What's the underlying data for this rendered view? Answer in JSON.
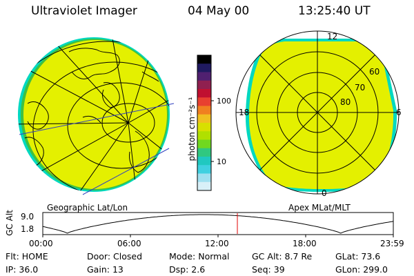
{
  "header": {
    "title": "Ultraviolet Imager",
    "date": "04 May 00",
    "time": "13:25:40 UT"
  },
  "colors": {
    "fill_yellow": "#e4f000",
    "edge_cyan": "#00d8c0",
    "edge_green": "#40c040",
    "cursor_red": "#e00000",
    "orbit_blue": "#3040c0"
  },
  "left_panel": {
    "caption": "Geographic Lat/Lon"
  },
  "right_panel": {
    "caption": "Apex MLat/MLT",
    "mlt_labels": {
      "top": "12",
      "left": "18",
      "right": "6",
      "bottom": "0"
    },
    "lat_labels": [
      "60",
      "70",
      "80"
    ]
  },
  "colorbar": {
    "unit_label": "photon cm⁻²s⁻¹",
    "ticks": [
      "100",
      "10"
    ],
    "stops": [
      "#000000",
      "#201a60",
      "#502070",
      "#902050",
      "#c01030",
      "#e84030",
      "#f08020",
      "#f0c020",
      "#d8e000",
      "#b0e000",
      "#70d820",
      "#30c880",
      "#20c8c0",
      "#40d0e0",
      "#a0e0f0",
      "#d8f0f8"
    ]
  },
  "altitude_plot": {
    "ylabel": "GC Alt",
    "y_ticks": [
      "9.0",
      "1.8"
    ],
    "x_ticks": [
      "00:00",
      "06:00",
      "12:00",
      "18:00",
      "23:59"
    ]
  },
  "info": {
    "row1": [
      {
        "k": "Flt:",
        "v": "HOME"
      },
      {
        "k": "Door:",
        "v": "Closed"
      },
      {
        "k": "Mode:",
        "v": "Normal"
      },
      {
        "k": "GC Alt:",
        "v": "8.7 Re"
      },
      {
        "k": "GLat:",
        "v": "73.6"
      }
    ],
    "row2": [
      {
        "k": "IP:",
        "v": "36.0"
      },
      {
        "k": "Gain:",
        "v": "13"
      },
      {
        "k": "Dsp:",
        "v": "2.6"
      },
      {
        "k": "Seq:",
        "v": "39"
      },
      {
        "k": "GLon:",
        "v": "299.0"
      }
    ]
  }
}
